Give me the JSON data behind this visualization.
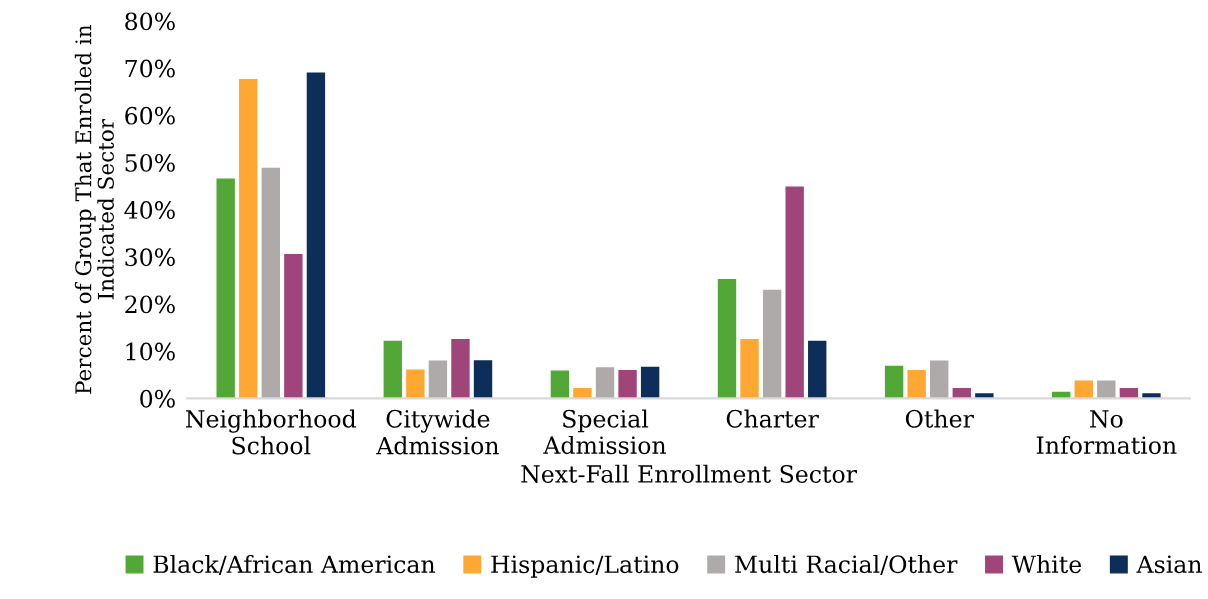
{
  "chart_data": {
    "type": "bar",
    "xlabel": "Next-Fall Enrollment Sector",
    "ylabel": "Percent of Group That Enrolled in\nIndicated Sector",
    "categories": [
      "Neighborhood\nSchool",
      "Citywide\nAdmission",
      "Special\nAdmission",
      "Charter",
      "Other",
      "No\nInformation"
    ],
    "series": [
      {
        "name": "Black/African American",
        "color": "#52a736",
        "values": [
          46.6,
          12.2,
          5.9,
          25.3,
          6.9,
          1.4
        ]
      },
      {
        "name": "Hispanic/Latino",
        "color": "#fea833",
        "values": [
          67.7,
          6.1,
          2.2,
          12.6,
          6.0,
          3.8
        ]
      },
      {
        "name": "Multi Racial/Other",
        "color": "#aeaaaa",
        "values": [
          48.9,
          8.0,
          6.6,
          23.0,
          8.0,
          3.8
        ]
      },
      {
        "name": "White",
        "color": "#a0457a",
        "values": [
          30.6,
          12.6,
          6.0,
          44.9,
          2.2,
          2.2
        ]
      },
      {
        "name": "Asian",
        "color": "#0c2e59",
        "values": [
          69.1,
          8.1,
          6.7,
          12.2,
          1.1,
          1.1
        ]
      }
    ],
    "ylim": [
      0,
      80
    ],
    "yticks": [
      {
        "value": 0,
        "label": "0%"
      },
      {
        "value": 10,
        "label": "10%"
      },
      {
        "value": 20,
        "label": "20%"
      },
      {
        "value": 30,
        "label": "30%"
      },
      {
        "value": 40,
        "label": "40%"
      },
      {
        "value": 50,
        "label": "50%"
      },
      {
        "value": 60,
        "label": "60%"
      },
      {
        "value": 70,
        "label": "70%"
      },
      {
        "value": 80,
        "label": "80%"
      }
    ],
    "grid": false,
    "legend": "bottom"
  }
}
